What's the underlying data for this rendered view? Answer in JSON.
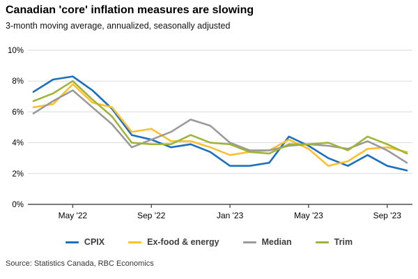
{
  "title": "Canadian 'core' inflation measures are slowing",
  "subtitle": "3-month moving average, annualized, seasonally adjusted",
  "source": "Source: Statistics Canada, RBC Economics",
  "chart_data": {
    "type": "line",
    "x": [
      "Mar '22",
      "Apr '22",
      "May '22",
      "Jun '22",
      "Jul '22",
      "Aug '22",
      "Sep '22",
      "Oct '22",
      "Nov '22",
      "Dec '22",
      "Jan '23",
      "Feb '23",
      "Mar '23",
      "Apr '23",
      "May '23",
      "Jun '23",
      "Jul '23",
      "Aug '23",
      "Sep '23",
      "Oct '23"
    ],
    "x_tick_labels": [
      "May '22",
      "Sep '22",
      "Jan '23",
      "May '23",
      "Sep '23"
    ],
    "x_tick_indices": [
      2,
      6,
      10,
      14,
      18
    ],
    "y_ticks": [
      0,
      2,
      4,
      6,
      8,
      10
    ],
    "y_tick_suffix": "%",
    "ylim": [
      0,
      10
    ],
    "grid": true,
    "legend_position": "bottom",
    "series": [
      {
        "name": "CPIX",
        "color": "#1b6fc0",
        "values": [
          7.3,
          8.1,
          8.3,
          7.4,
          6.2,
          4.5,
          4.2,
          3.7,
          3.9,
          3.4,
          2.5,
          2.5,
          2.7,
          4.4,
          3.8,
          3.0,
          2.5,
          3.2,
          2.5,
          2.2
        ]
      },
      {
        "name": "Ex-food & energy",
        "color": "#fdc02f",
        "values": [
          6.3,
          6.5,
          7.8,
          6.6,
          6.3,
          4.7,
          4.9,
          4.1,
          4.1,
          3.7,
          3.2,
          3.4,
          3.5,
          4.2,
          3.6,
          2.5,
          2.8,
          3.6,
          3.7,
          3.4
        ]
      },
      {
        "name": "Median",
        "color": "#9a9a9a",
        "values": [
          5.9,
          6.7,
          7.4,
          6.3,
          5.2,
          3.7,
          4.2,
          4.7,
          5.5,
          5.1,
          4.0,
          3.5,
          3.5,
          3.8,
          3.9,
          3.8,
          3.6,
          4.1,
          3.5,
          2.7
        ]
      },
      {
        "name": "Trim",
        "color": "#a2b437",
        "values": [
          6.7,
          7.2,
          8.0,
          6.8,
          5.7,
          4.0,
          3.9,
          3.9,
          4.5,
          4.0,
          3.9,
          3.4,
          3.3,
          3.9,
          3.9,
          4.0,
          3.5,
          4.4,
          3.9,
          3.3
        ]
      }
    ],
    "style": {
      "grid_color": "#d9d9d9",
      "axis_color": "#4d4d4d",
      "line_width": 2.6
    }
  }
}
